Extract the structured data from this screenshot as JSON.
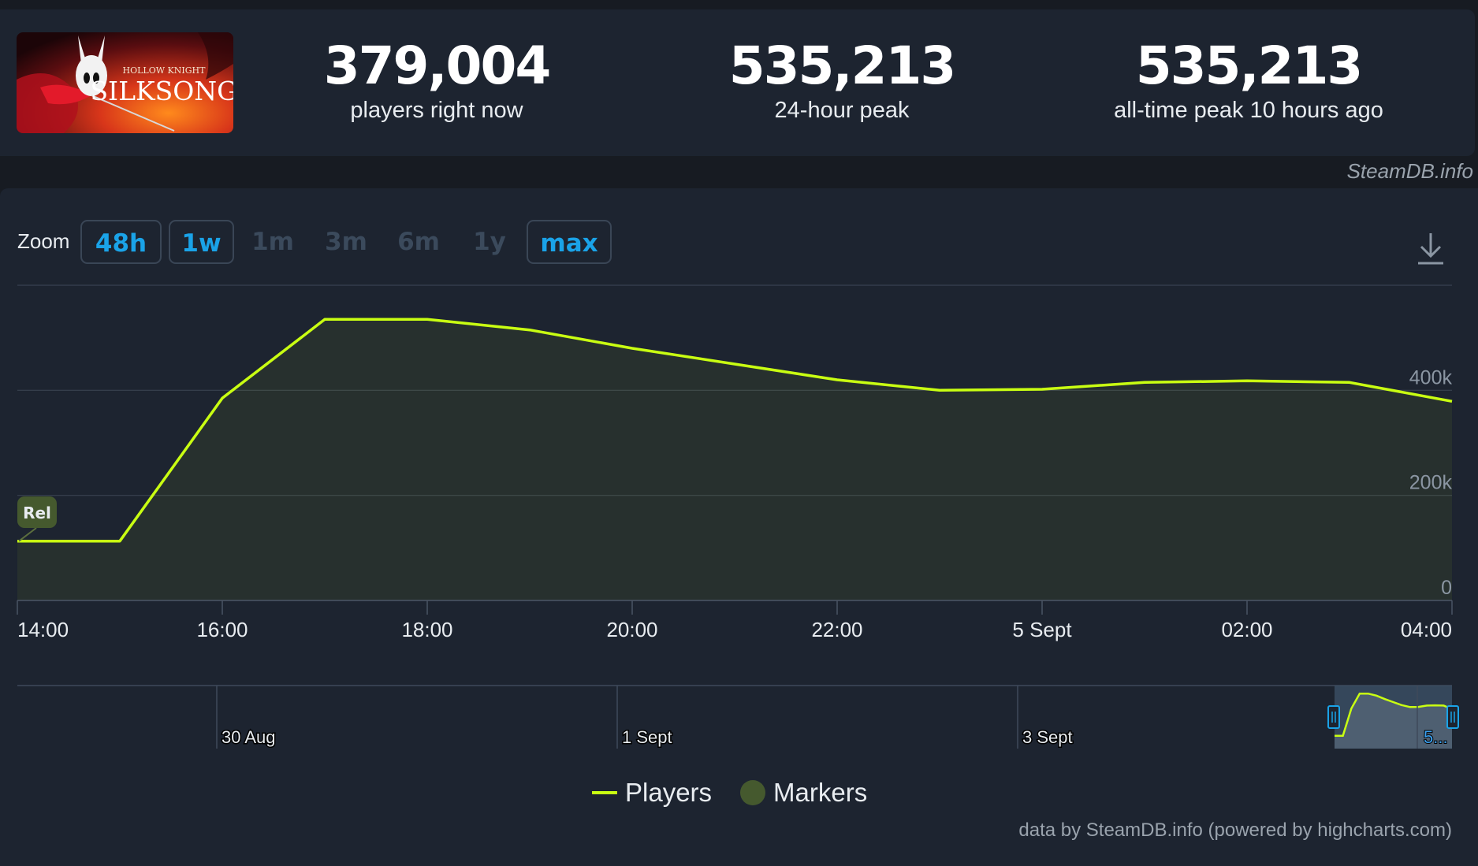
{
  "header": {
    "cover_alt": "HOLLOW KNIGHT SILKSONG",
    "cover_title_small": "HOLLOW KNIGHT",
    "cover_title_big": "SILKSONG",
    "stats": [
      {
        "value": "379,004",
        "label": "players right now"
      },
      {
        "value": "535,213",
        "label": "24-hour peak"
      },
      {
        "value": "535,213",
        "label": "all-time peak 10 hours ago"
      }
    ],
    "credit": "SteamDB.info"
  },
  "zoom": {
    "label": "Zoom",
    "buttons": [
      {
        "label": "48h",
        "active": true
      },
      {
        "label": "1w",
        "active": true
      },
      {
        "label": "1m",
        "active": false
      },
      {
        "label": "3m",
        "active": false
      },
      {
        "label": "6m",
        "active": false
      },
      {
        "label": "1y",
        "active": false
      },
      {
        "label": "max",
        "active": true
      }
    ],
    "download_icon": "download-icon"
  },
  "chart_data": {
    "type": "area",
    "x_labels": [
      "14:00",
      "16:00",
      "18:00",
      "20:00",
      "22:00",
      "5 Sept",
      "02:00",
      "04:00"
    ],
    "y_ticks": [
      "0",
      "200k",
      "400k"
    ],
    "ylim": [
      0,
      600000
    ],
    "grid": true,
    "series": [
      {
        "name": "Players",
        "color": "#c9ff12",
        "x": [
          "4 Sept 14:00",
          "4 Sept 15:00",
          "4 Sept 16:00",
          "4 Sept 17:00",
          "4 Sept 18:00",
          "4 Sept 19:00",
          "4 Sept 20:00",
          "4 Sept 21:00",
          "4 Sept 22:00",
          "4 Sept 23:00",
          "5 Sept 00:00",
          "5 Sept 01:00",
          "5 Sept 02:00",
          "5 Sept 03:00",
          "5 Sept 04:00"
        ],
        "values": [
          113000,
          113000,
          385000,
          535000,
          535213,
          515000,
          480000,
          450000,
          420000,
          400000,
          402000,
          415000,
          418000,
          415000,
          379004
        ]
      }
    ],
    "markers": [
      {
        "label": "Rel",
        "x": "4 Sept 14:00"
      }
    ],
    "navigator": {
      "date_labels": [
        "30 Aug",
        "1 Sept",
        "3 Sept",
        "5..."
      ]
    },
    "legend": [
      "Players",
      "Markers"
    ],
    "marker_color": "#45592e"
  },
  "footer": {
    "credit": "data by SteamDB.info (powered by highcharts.com)"
  }
}
